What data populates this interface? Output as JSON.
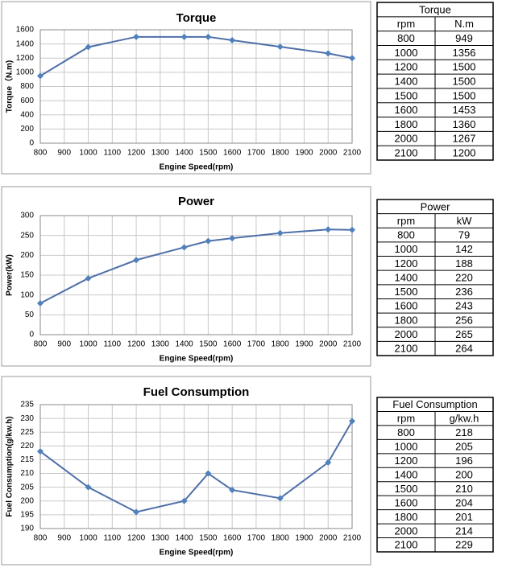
{
  "chart_data": [
    {
      "type": "line",
      "title": "Torque",
      "x_label": "Engine Speed(rpm)",
      "y_label": "Torque（N.m)",
      "x": [
        800,
        1000,
        1200,
        1400,
        1500,
        1600,
        1800,
        2000,
        2100
      ],
      "series": [
        {
          "name": "Torque",
          "color": "#4f6fa8",
          "values": [
            949,
            1356,
            1500,
            1500,
            1500,
            1453,
            1360,
            1267,
            1200
          ]
        }
      ],
      "xlim": [
        800,
        2100
      ],
      "xticks": [
        800,
        900,
        1000,
        1100,
        1200,
        1300,
        1400,
        1500,
        1600,
        1700,
        1800,
        1900,
        2000,
        2100
      ],
      "ylim": [
        0,
        1600
      ],
      "yticks": [
        0,
        200,
        400,
        600,
        800,
        1000,
        1200,
        1400,
        1600
      ],
      "grid": true
    },
    {
      "type": "line",
      "title": "Power",
      "x_label": "Engine Speed(rpm)",
      "y_label": "Power(kW)",
      "x": [
        800,
        1000,
        1200,
        1400,
        1500,
        1600,
        1800,
        2000,
        2100
      ],
      "series": [
        {
          "name": "Power",
          "color": "#4f6fa8",
          "values": [
            79,
            142,
            188,
            220,
            236,
            243,
            256,
            265,
            264
          ]
        }
      ],
      "xlim": [
        800,
        2100
      ],
      "xticks": [
        800,
        900,
        1000,
        1100,
        1200,
        1300,
        1400,
        1500,
        1600,
        1700,
        1800,
        1900,
        2000,
        2100
      ],
      "ylim": [
        0,
        300
      ],
      "yticks": [
        0,
        50,
        100,
        150,
        200,
        250,
        300
      ],
      "grid": true
    },
    {
      "type": "line",
      "title": "Fuel Consumption",
      "x_label": "Engine Speed(rpm)",
      "y_label": "Fuel Consumption(g/kw.h)",
      "x": [
        800,
        1000,
        1200,
        1400,
        1500,
        1600,
        1800,
        2000,
        2100
      ],
      "series": [
        {
          "name": "Fuel Consumption",
          "color": "#4f6fa8",
          "values": [
            218,
            205,
            196,
            200,
            210,
            204,
            201,
            214,
            229
          ]
        }
      ],
      "xlim": [
        800,
        2100
      ],
      "xticks": [
        800,
        900,
        1000,
        1100,
        1200,
        1300,
        1400,
        1500,
        1600,
        1700,
        1800,
        1900,
        2000,
        2100
      ],
      "ylim": [
        190,
        235
      ],
      "yticks": [
        190,
        195,
        200,
        205,
        210,
        215,
        220,
        225,
        230,
        235
      ],
      "grid": true
    }
  ],
  "tables": [
    {
      "title": "Torque",
      "columns": [
        "rpm",
        "N.m"
      ]
    },
    {
      "title": "Power",
      "columns": [
        "rpm",
        "kW"
      ]
    },
    {
      "title": "Fuel Consumption",
      "columns": [
        "rpm",
        "g/kw.h"
      ]
    }
  ]
}
